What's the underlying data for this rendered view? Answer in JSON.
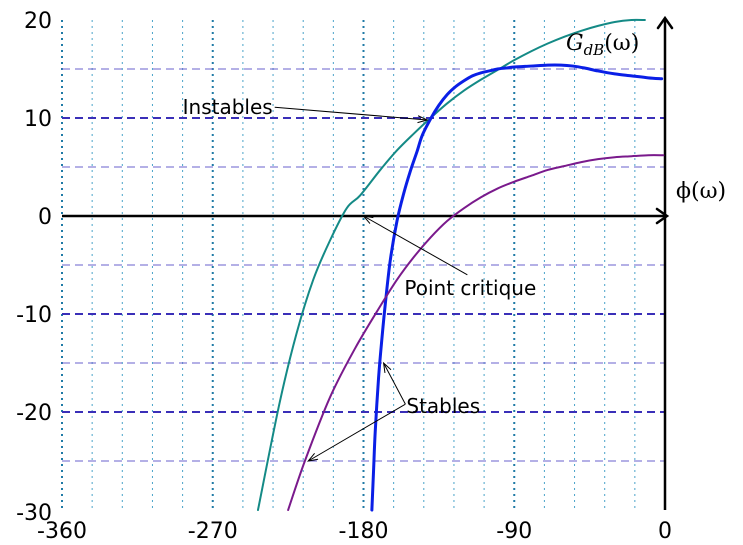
{
  "chart_data": {
    "type": "line",
    "xlabel": "ϕ(ω)",
    "ylabel": "G_dB(ω)",
    "ylabel_main": "G",
    "ylabel_sub": "dB",
    "ylabel_tail": "(ω)",
    "xlim": [
      -360,
      0
    ],
    "ylim": [
      -30,
      20
    ],
    "x_ticks": [
      -360,
      -270,
      -180,
      -90,
      0
    ],
    "y_ticks": [
      20,
      10,
      0,
      -10,
      -20,
      -30
    ],
    "x_tick_labels": [
      "-360",
      "-270",
      "-180",
      "-90",
      "0"
    ],
    "y_tick_labels": [
      "20",
      "10",
      "0",
      "-10",
      "-20",
      "-30"
    ],
    "grid": {
      "major_vertical_color": "#1f7aa6",
      "minor_vertical_color": "#4aa3c9",
      "major_horizontal_color": "#3a2fb8",
      "minor_horizontal_color": "#6a60cc",
      "vertical_step": 18,
      "horizontal_major": [
        10,
        -10,
        -20
      ],
      "horizontal_minor": [
        15,
        5,
        -5,
        -15,
        -25
      ]
    },
    "series": [
      {
        "color": "#148a86",
        "width": 2,
        "x": [
          -243,
          -230,
          -220,
          -210,
          -200,
          -190,
          -182,
          -170,
          -160,
          -150,
          -140,
          -130,
          -120,
          -110,
          -100,
          -90,
          -80,
          -70,
          -60,
          -50,
          -40,
          -30,
          -20,
          -12
        ],
        "y": [
          -30,
          -19,
          -12,
          -6.5,
          -2.5,
          0.8,
          2.1,
          4.7,
          6.7,
          8.4,
          10.0,
          11.5,
          12.8,
          13.9,
          14.9,
          15.9,
          16.8,
          17.6,
          18.3,
          18.9,
          19.4,
          19.8,
          20.0,
          20.0
        ]
      },
      {
        "color": "#0a1fe6",
        "width": 3,
        "x": [
          -175,
          -174,
          -173,
          -171,
          -169,
          -167,
          -164,
          -160,
          -156,
          -152,
          -148,
          -145,
          -140,
          -135,
          -130,
          -125,
          -120,
          -115,
          -110,
          -105,
          -100,
          -95,
          -90,
          -80,
          -70,
          -62,
          -55,
          -48,
          -40,
          -30,
          -20,
          -10,
          -2
        ],
        "y": [
          -30,
          -26,
          -22,
          -16.5,
          -12.5,
          -9,
          -4.5,
          -0.5,
          2.3,
          4.6,
          6.6,
          8.2,
          9.9,
          11.3,
          12.4,
          13.2,
          13.8,
          14.3,
          14.6,
          14.8,
          15.0,
          15.1,
          15.2,
          15.3,
          15.4,
          15.4,
          15.3,
          15.1,
          14.8,
          14.5,
          14.3,
          14.1,
          14.0
        ]
      },
      {
        "color": "#7a1a8c",
        "width": 2,
        "x": [
          -225,
          -215,
          -200,
          -185,
          -170,
          -160,
          -150,
          -140,
          -130,
          -120,
          -110,
          -100,
          -90,
          -80,
          -70,
          -60,
          -50,
          -40,
          -30,
          -20,
          -10,
          -1
        ],
        "y": [
          -30,
          -25,
          -18.5,
          -13.5,
          -9.2,
          -6.5,
          -4.2,
          -2.2,
          -0.5,
          0.8,
          1.9,
          2.8,
          3.5,
          4.1,
          4.7,
          5.1,
          5.5,
          5.8,
          6.0,
          6.1,
          6.2,
          6.2
        ]
      }
    ],
    "annotations": [
      {
        "text": "Instables",
        "from": [
          -233,
          11.1
        ],
        "to": [
          -142,
          9.8
        ]
      },
      {
        "text": "Point critique",
        "from": [
          -118,
          -6.0
        ],
        "to": [
          -180,
          0
        ]
      },
      {
        "text": "Stables",
        "from": [
          -155,
          -19.2
        ],
        "to": [
          -168,
          -15
        ]
      },
      {
        "text": "Stables",
        "from": [
          -155,
          -19.2
        ],
        "to": [
          -213,
          -25
        ]
      }
    ]
  }
}
